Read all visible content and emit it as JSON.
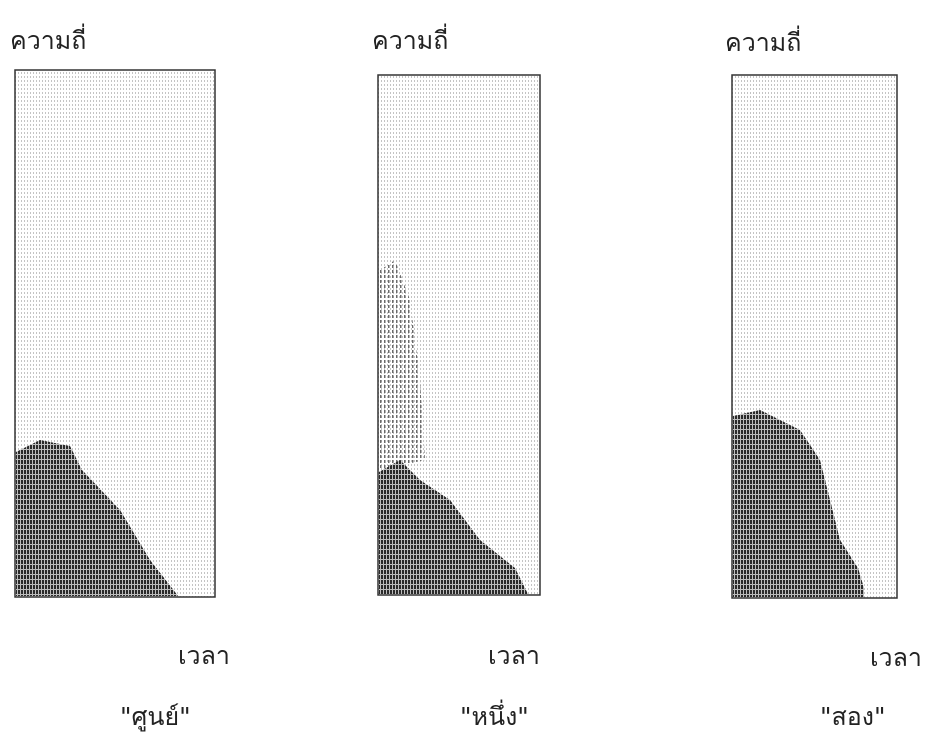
{
  "panels": [
    {
      "y_label": "ความถี่",
      "x_label": "เวลา",
      "word": "\"ศูนย์\""
    },
    {
      "y_label": "ความถี่",
      "x_label": "เวลา",
      "word": "\"หนึ่ง\""
    },
    {
      "y_label": "ความถี่",
      "x_label": "เวลา",
      "word": "\"สอง\""
    }
  ]
}
